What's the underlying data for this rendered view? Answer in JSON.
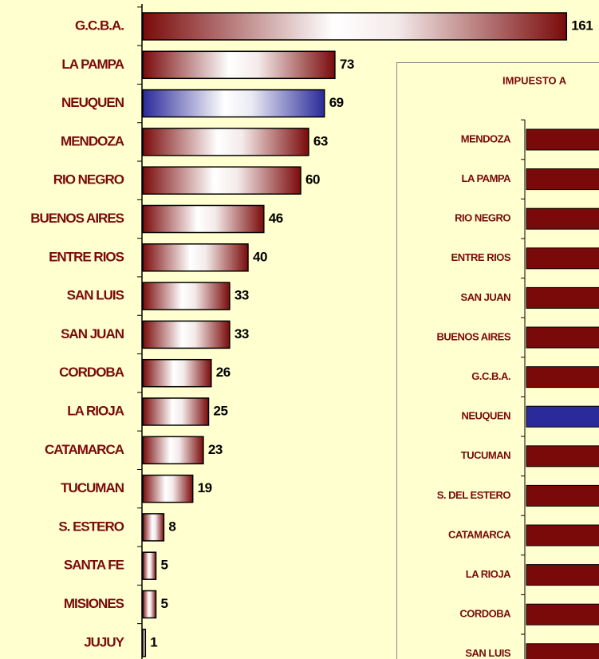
{
  "chart_data": [
    {
      "type": "bar",
      "orientation": "horizontal",
      "categories": [
        "G.C.B.A.",
        "LA PAMPA",
        "NEUQUEN",
        "MENDOZA",
        "RIO NEGRO",
        "BUENOS AIRES",
        "ENTRE RIOS",
        "SAN LUIS",
        "SAN JUAN",
        "CORDOBA",
        "LA RIOJA",
        "CATAMARCA",
        "TUCUMAN",
        "S. ESTERO",
        "SANTA FE",
        "MISIONES",
        "JUJUY"
      ],
      "values": [
        161,
        73,
        69,
        63,
        60,
        46,
        40,
        33,
        33,
        26,
        25,
        23,
        19,
        8,
        5,
        5,
        1
      ],
      "color": "#7a0a0a",
      "highlight": "NEUQUEN",
      "highlight_color": "#2a2a9a"
    },
    {
      "type": "bar",
      "orientation": "horizontal",
      "title": "IMPUESTO A",
      "categories": [
        "MENDOZA",
        "LA PAMPA",
        "RIO NEGRO",
        "ENTRE RIOS",
        "SAN JUAN",
        "BUENOS AIRES",
        "G.C.B.A.",
        "NEUQUEN",
        "TUCUMAN",
        "S. DEL ESTERO",
        "CATAMARCA",
        "LA RIOJA",
        "CORDOBA",
        "SAN LUIS"
      ],
      "color": "#7a0a0a",
      "highlight": "NEUQUEN",
      "highlight_color": "#2a2a9a"
    }
  ]
}
